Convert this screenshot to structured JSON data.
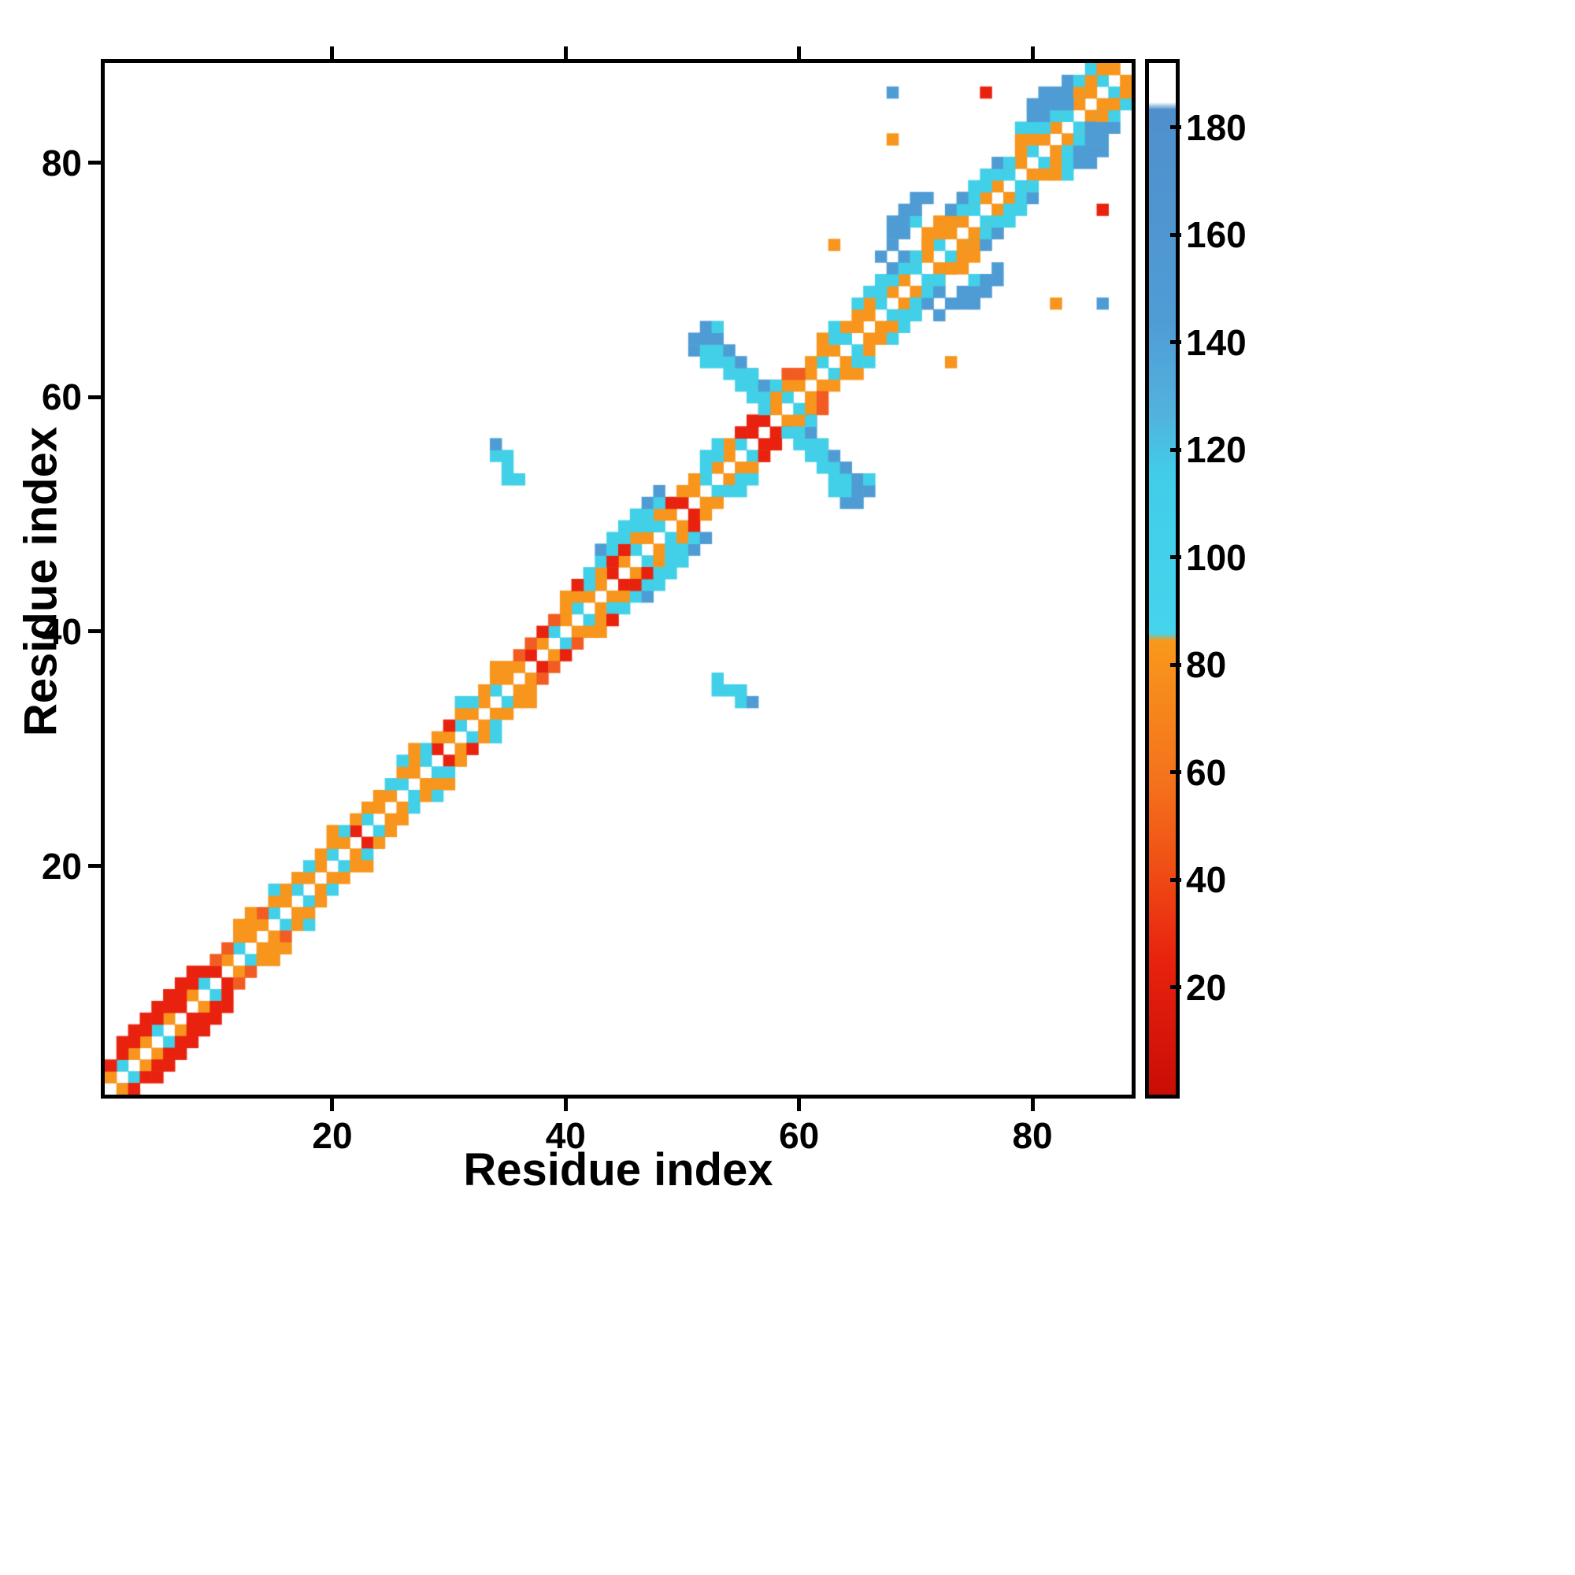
{
  "figure": {
    "background": "#ffffff",
    "axis_color": "#000000"
  },
  "chart_data": {
    "type": "heatmap",
    "title": "",
    "xlabel": "Residue index",
    "ylabel": "Residue index",
    "n_residues": 88,
    "x_range": [
      0.5,
      88.5
    ],
    "y_range": [
      0.5,
      88.5
    ],
    "x_ticks": [
      20,
      40,
      60,
      80
    ],
    "y_ticks": [
      20,
      40,
      60,
      80
    ],
    "symmetric": true,
    "colormap_bins": [
      {
        "max": 30,
        "color": "#e8220e"
      },
      {
        "max": 50,
        "color": "#f25b22"
      },
      {
        "max": 85,
        "color": "#f7951d"
      },
      {
        "max": 125,
        "color": "#41d0e8"
      },
      {
        "max": 185,
        "color": "#4f9cd5"
      },
      {
        "max": 999,
        "color": "#ffffff"
      }
    ],
    "colorbar": {
      "range": [
        0,
        192
      ],
      "ticks": [
        20,
        40,
        60,
        80,
        100,
        120,
        140,
        160,
        180
      ],
      "gradient": [
        {
          "p": 0.0,
          "c": "#c90d05"
        },
        {
          "p": 0.13,
          "c": "#e8220e"
        },
        {
          "p": 0.22,
          "c": "#f04e15"
        },
        {
          "p": 0.3,
          "c": "#f4711c"
        },
        {
          "p": 0.44,
          "c": "#f8981c"
        },
        {
          "p": 0.447,
          "c": "#45d4ec"
        },
        {
          "p": 0.6,
          "c": "#41cde9"
        },
        {
          "p": 0.66,
          "c": "#52b2dd"
        },
        {
          "p": 0.75,
          "c": "#4f9cd5"
        },
        {
          "p": 0.955,
          "c": "#4f90cc"
        },
        {
          "p": 0.962,
          "c": "#ffffff"
        },
        {
          "p": 1.0,
          "c": "#ffffff"
        }
      ]
    },
    "diag_offset1_values": [
      60,
      105,
      60,
      60,
      105,
      60,
      20,
      60,
      105,
      20,
      60,
      105,
      60,
      60,
      105,
      60,
      105,
      60,
      60,
      105,
      60,
      20,
      105,
      60,
      60,
      105,
      60,
      105,
      20,
      60,
      105,
      60,
      60,
      105,
      60,
      60,
      20,
      60,
      105,
      60,
      105,
      60,
      60,
      20,
      60,
      105,
      60,
      105,
      60,
      20,
      60,
      105,
      60,
      60,
      105,
      20,
      20,
      60,
      105,
      60,
      60,
      105,
      60,
      105,
      60,
      60,
      105,
      60,
      60,
      105,
      60,
      105,
      60,
      60,
      105,
      60,
      60,
      105,
      60,
      105,
      60,
      60,
      105,
      60,
      60,
      105,
      60
    ],
    "diag_offset2_values": [
      20,
      20,
      20,
      20,
      20,
      20,
      20,
      20,
      20,
      40,
      40,
      60,
      60,
      40,
      60,
      60,
      60,
      105,
      60,
      60,
      105,
      60,
      60,
      60,
      105,
      60,
      60,
      105,
      60,
      20,
      60,
      105,
      60,
      60,
      60,
      40,
      40,
      20,
      40,
      60,
      60,
      105,
      60,
      40,
      20,
      60,
      105,
      60,
      20,
      60,
      60,
      105,
      105,
      60,
      40,
      20,
      40,
      60,
      60,
      40,
      60,
      60,
      105,
      60,
      60,
      60,
      60,
      105,
      60,
      60,
      60,
      60,
      105,
      60,
      60,
      60,
      105,
      60,
      60,
      60,
      105,
      60,
      60,
      105,
      60,
      60
    ],
    "diag_offset3_pairs": [
      [
        2,
        20
      ],
      [
        3,
        20
      ],
      [
        4,
        20
      ],
      [
        5,
        20
      ],
      [
        6,
        20
      ],
      [
        7,
        20
      ],
      [
        8,
        20
      ],
      [
        12,
        60
      ],
      [
        13,
        60
      ],
      [
        15,
        105
      ],
      [
        20,
        60
      ],
      [
        26,
        105
      ],
      [
        27,
        60
      ],
      [
        31,
        105
      ],
      [
        34,
        60
      ],
      [
        40,
        60
      ],
      [
        41,
        20
      ],
      [
        46,
        105
      ],
      [
        47,
        105
      ],
      [
        52,
        105
      ],
      [
        53,
        105
      ],
      [
        58,
        40
      ],
      [
        59,
        40
      ],
      [
        62,
        60
      ],
      [
        63,
        105
      ],
      [
        68,
        60
      ],
      [
        69,
        105
      ],
      [
        74,
        60
      ],
      [
        75,
        105
      ],
      [
        80,
        150
      ],
      [
        81,
        150
      ]
    ],
    "points": [
      [
        41,
        44,
        20
      ],
      [
        42,
        45,
        105
      ],
      [
        43,
        46,
        105
      ],
      [
        43,
        47,
        150
      ],
      [
        44,
        46,
        20
      ],
      [
        44,
        47,
        105
      ],
      [
        44,
        48,
        105
      ],
      [
        45,
        47,
        20
      ],
      [
        45,
        48,
        105
      ],
      [
        45,
        49,
        105
      ],
      [
        46,
        49,
        105
      ],
      [
        46,
        50,
        105
      ],
      [
        47,
        50,
        105
      ],
      [
        47,
        51,
        150
      ],
      [
        48,
        51,
        105
      ],
      [
        48,
        52,
        150
      ],
      [
        34,
        55,
        105
      ],
      [
        34,
        56,
        150
      ],
      [
        35,
        53,
        105
      ],
      [
        35,
        54,
        105
      ],
      [
        35,
        55,
        105
      ],
      [
        36,
        53,
        105
      ],
      [
        51,
        64,
        150
      ],
      [
        51,
        65,
        150
      ],
      [
        52,
        63,
        105
      ],
      [
        52,
        64,
        105
      ],
      [
        52,
        65,
        150
      ],
      [
        52,
        66,
        150
      ],
      [
        53,
        63,
        105
      ],
      [
        53,
        64,
        105
      ],
      [
        53,
        65,
        150
      ],
      [
        53,
        66,
        105
      ],
      [
        54,
        62,
        105
      ],
      [
        54,
        63,
        105
      ],
      [
        54,
        64,
        150
      ],
      [
        55,
        61,
        105
      ],
      [
        55,
        62,
        105
      ],
      [
        55,
        63,
        150
      ],
      [
        56,
        60,
        105
      ],
      [
        56,
        61,
        105
      ],
      [
        56,
        62,
        105
      ],
      [
        57,
        59,
        105
      ],
      [
        57,
        60,
        105
      ],
      [
        57,
        61,
        150
      ],
      [
        58,
        61,
        105
      ],
      [
        55,
        57,
        20
      ],
      [
        56,
        58,
        20
      ],
      [
        65,
        68,
        105
      ],
      [
        66,
        69,
        105
      ],
      [
        67,
        69,
        105
      ],
      [
        67,
        70,
        105
      ],
      [
        67,
        72,
        150
      ],
      [
        68,
        70,
        105
      ],
      [
        68,
        71,
        150
      ],
      [
        68,
        73,
        150
      ],
      [
        68,
        74,
        150
      ],
      [
        68,
        75,
        150
      ],
      [
        69,
        71,
        105
      ],
      [
        69,
        72,
        150
      ],
      [
        69,
        74,
        150
      ],
      [
        69,
        75,
        150
      ],
      [
        69,
        76,
        150
      ],
      [
        70,
        72,
        105
      ],
      [
        70,
        75,
        105
      ],
      [
        70,
        76,
        150
      ],
      [
        70,
        77,
        150
      ],
      [
        71,
        77,
        150
      ],
      [
        71,
        73,
        60
      ],
      [
        71,
        74,
        60
      ],
      [
        72,
        74,
        75
      ],
      [
        72,
        75,
        60
      ],
      [
        73,
        75,
        75
      ],
      [
        73,
        76,
        150
      ],
      [
        74,
        76,
        105
      ],
      [
        74,
        77,
        150
      ],
      [
        75,
        77,
        105
      ],
      [
        75,
        78,
        105
      ],
      [
        76,
        78,
        105
      ],
      [
        76,
        79,
        105
      ],
      [
        77,
        80,
        150
      ],
      [
        78,
        80,
        105
      ],
      [
        79,
        82,
        60
      ],
      [
        79,
        83,
        105
      ],
      [
        80,
        83,
        105
      ],
      [
        80,
        84,
        150
      ],
      [
        80,
        85,
        150
      ],
      [
        81,
        84,
        150
      ],
      [
        81,
        85,
        150
      ],
      [
        81,
        86,
        150
      ],
      [
        82,
        84,
        105
      ],
      [
        82,
        85,
        150
      ],
      [
        82,
        86,
        150
      ],
      [
        83,
        85,
        150
      ],
      [
        83,
        86,
        150
      ],
      [
        83,
        87,
        150
      ],
      [
        84,
        86,
        60
      ],
      [
        84,
        87,
        105
      ],
      [
        85,
        87,
        60
      ],
      [
        85,
        88,
        105
      ],
      [
        86,
        88,
        60
      ],
      [
        68,
        86,
        150
      ],
      [
        76,
        86,
        20
      ],
      [
        68,
        82,
        75
      ],
      [
        63,
        73,
        75
      ]
    ]
  }
}
